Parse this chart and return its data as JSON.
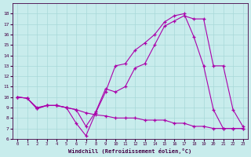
{
  "xlabel": "Windchill (Refroidissement éolien,°C)",
  "bg_color": "#c8ecec",
  "grid_color": "#a8d8d8",
  "line_color": "#aa00aa",
  "marker": "+",
  "xlim": [
    -0.5,
    23.5
  ],
  "ylim": [
    6,
    19
  ],
  "xticks": [
    0,
    1,
    2,
    3,
    4,
    5,
    6,
    7,
    8,
    9,
    10,
    11,
    12,
    13,
    14,
    15,
    16,
    17,
    18,
    19,
    20,
    21,
    22,
    23
  ],
  "yticks": [
    6,
    7,
    8,
    9,
    10,
    11,
    12,
    13,
    14,
    15,
    16,
    17,
    18
  ],
  "line1_x": [
    0,
    1,
    2,
    3,
    4,
    5,
    6,
    7,
    8,
    9,
    10,
    11,
    12,
    13,
    14,
    15,
    16,
    17,
    18,
    19,
    20,
    21,
    22,
    23
  ],
  "line1_y": [
    10.0,
    9.9,
    8.9,
    9.2,
    9.2,
    9.0,
    8.8,
    7.2,
    8.6,
    10.8,
    10.5,
    11.0,
    12.8,
    13.2,
    15.0,
    16.8,
    17.3,
    17.8,
    17.5,
    17.5,
    13.0,
    13.0,
    8.8,
    7.2
  ],
  "line2_x": [
    0,
    1,
    2,
    3,
    4,
    5,
    6,
    7,
    8,
    9,
    10,
    11,
    12,
    13,
    14,
    15,
    16,
    17,
    18,
    19,
    20,
    21,
    22,
    23
  ],
  "line2_y": [
    10.0,
    9.9,
    8.9,
    9.2,
    9.2,
    9.0,
    7.5,
    6.3,
    8.5,
    10.5,
    13.0,
    13.2,
    14.5,
    15.2,
    16.0,
    17.2,
    17.8,
    18.0,
    15.8,
    13.0,
    8.8,
    7.0,
    7.0,
    7.0
  ],
  "line3_x": [
    0,
    1,
    2,
    3,
    4,
    5,
    6,
    7,
    8,
    9,
    10,
    11,
    12,
    13,
    14,
    15,
    16,
    17,
    18,
    19,
    20,
    21,
    22,
    23
  ],
  "line3_y": [
    10.0,
    9.9,
    9.0,
    9.2,
    9.2,
    9.0,
    8.8,
    8.5,
    8.3,
    8.2,
    8.0,
    8.0,
    8.0,
    7.8,
    7.8,
    7.8,
    7.5,
    7.5,
    7.2,
    7.2,
    7.0,
    7.0,
    7.0,
    7.0
  ]
}
